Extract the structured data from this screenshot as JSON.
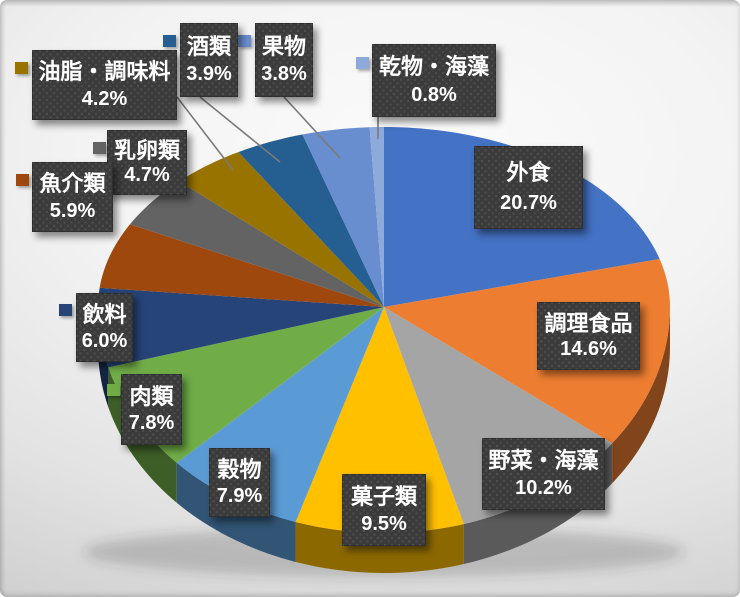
{
  "chart_data": {
    "type": "pie",
    "style": "3d-exploded-none",
    "title": "",
    "unit": "%",
    "start_angle_deg": -90,
    "direction": "clockwise",
    "slices": [
      {
        "label": "外食",
        "value": 20.7,
        "pct_text": "20.7%",
        "color": "#4472C4"
      },
      {
        "label": "調理食品",
        "value": 14.6,
        "pct_text": "14.6%",
        "color": "#ED7D31"
      },
      {
        "label": "野菜・海藻",
        "value": 10.2,
        "pct_text": "10.2%",
        "color": "#A5A5A5"
      },
      {
        "label": "菓子類",
        "value": 9.5,
        "pct_text": "9.5%",
        "color": "#FFC000"
      },
      {
        "label": "穀物",
        "value": 7.9,
        "pct_text": "7.9%",
        "color": "#5B9BD5"
      },
      {
        "label": "肉類",
        "value": 7.8,
        "pct_text": "7.8%",
        "color": "#70AD47"
      },
      {
        "label": "飲料",
        "value": 6.0,
        "pct_text": "6.0%",
        "color": "#264478"
      },
      {
        "label": "魚介類",
        "value": 5.9,
        "pct_text": "5.9%",
        "color": "#9E480E"
      },
      {
        "label": "乳卵類",
        "value": 4.7,
        "pct_text": "4.7%",
        "color": "#636363"
      },
      {
        "label": "油脂・調味料",
        "value": 4.2,
        "pct_text": "4.2%",
        "color": "#997300"
      },
      {
        "label": "酒類",
        "value": 3.9,
        "pct_text": "3.9%",
        "color": "#255E91"
      },
      {
        "label": "果物",
        "value": 3.8,
        "pct_text": "3.8%",
        "color": "#698ED0"
      },
      {
        "label": "乾物・海藻",
        "value": 0.8,
        "pct_text": "0.8%",
        "color": "#8EAADB"
      }
    ],
    "legend_position": "attached-to-labels",
    "grid": false
  },
  "styles": {
    "label_box_bg": "#3b3b3b",
    "label_text_color": "#ffffff",
    "leader_line_color": "#7a7a7a",
    "wall_shade_factor": 0.55
  }
}
